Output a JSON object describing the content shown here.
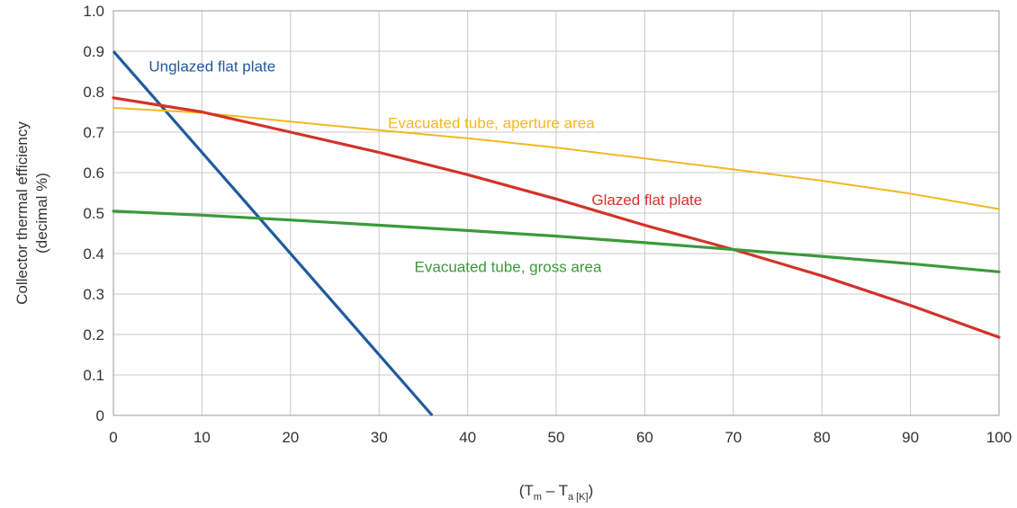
{
  "chart_data": {
    "type": "line",
    "title": "",
    "xlabel_parts": {
      "open": "(T",
      "sub1": "m",
      "mid": " – T",
      "sub2": "a [K]",
      "close": ")"
    },
    "ylabel_line1": "Collector thermal efficiency",
    "ylabel_line2": "(decimal %)",
    "xlim": [
      0,
      100
    ],
    "ylim": [
      0,
      1.0
    ],
    "x_ticks": [
      0,
      10,
      20,
      30,
      40,
      50,
      60,
      70,
      80,
      90,
      100
    ],
    "y_ticks": [
      0,
      0.1,
      0.2,
      0.3,
      0.4,
      0.5,
      0.6,
      0.7,
      0.8,
      0.9,
      1.0
    ],
    "x_tick_labels": [
      "0",
      "10",
      "20",
      "30",
      "40",
      "50",
      "60",
      "70",
      "80",
      "90",
      "100"
    ],
    "y_tick_labels": [
      "0",
      "0.1",
      "0.2",
      "0.3",
      "0.4",
      "0.5",
      "0.6",
      "0.7",
      "0.8",
      "0.9",
      "1.0"
    ],
    "grid": true,
    "series": [
      {
        "name": "Unglazed flat plate",
        "color": "#1f5b9c",
        "label_at": [
          4,
          0.85
        ],
        "points": [
          [
            0,
            0.9
          ],
          [
            36,
            0
          ]
        ]
      },
      {
        "name": "Evacuated tube, aperture area",
        "color": "#f2b81f",
        "label_at": [
          31,
          0.71
        ],
        "points": [
          [
            0,
            0.76
          ],
          [
            10,
            0.748
          ],
          [
            20,
            0.726
          ],
          [
            30,
            0.705
          ],
          [
            40,
            0.685
          ],
          [
            50,
            0.662
          ],
          [
            60,
            0.635
          ],
          [
            70,
            0.608
          ],
          [
            80,
            0.58
          ],
          [
            90,
            0.548
          ],
          [
            100,
            0.51
          ]
        ]
      },
      {
        "name": "Glazed flat plate",
        "color": "#d2332a",
        "label_at": [
          54,
          0.52
        ],
        "points": [
          [
            0,
            0.785
          ],
          [
            10,
            0.75
          ],
          [
            20,
            0.7
          ],
          [
            30,
            0.65
          ],
          [
            40,
            0.595
          ],
          [
            50,
            0.535
          ],
          [
            60,
            0.47
          ],
          [
            70,
            0.41
          ],
          [
            80,
            0.345
          ],
          [
            90,
            0.272
          ],
          [
            100,
            0.193
          ]
        ]
      },
      {
        "name": "Evacuated tube, gross area",
        "color": "#3a9a3a",
        "label_at": [
          34,
          0.355
        ],
        "points": [
          [
            0,
            0.505
          ],
          [
            10,
            0.495
          ],
          [
            20,
            0.483
          ],
          [
            30,
            0.47
          ],
          [
            40,
            0.457
          ],
          [
            50,
            0.443
          ],
          [
            60,
            0.427
          ],
          [
            70,
            0.41
          ],
          [
            80,
            0.393
          ],
          [
            90,
            0.375
          ],
          [
            100,
            0.355
          ]
        ]
      }
    ]
  }
}
